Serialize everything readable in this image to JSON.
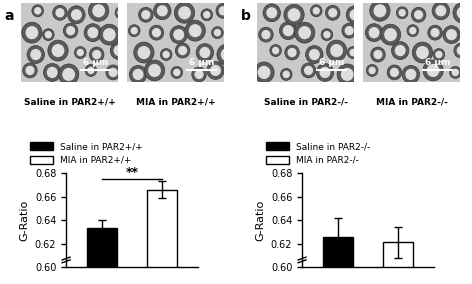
{
  "chart_data": [
    {
      "type": "bar",
      "title": "a",
      "categories": [
        null,
        null
      ],
      "series": [
        {
          "name": "Saline in PAR2+/+",
          "color": "#000000",
          "values": [
            0.633,
            null
          ],
          "errors": [
            0.007,
            null
          ]
        },
        {
          "name": "MIA in PAR2+/+",
          "color": "#ffffff",
          "values": [
            null,
            0.666
          ],
          "errors": [
            null,
            0.007
          ]
        }
      ],
      "y_label": "G-Ratio",
      "ylim": [
        0.6,
        0.68
      ],
      "yticks": [
        {
          "value": 0.6,
          "label": "0.60"
        },
        {
          "value": 0.62,
          "label": "0.62"
        },
        {
          "value": 0.64,
          "label": "0.64"
        },
        {
          "value": 0.66,
          "label": "0.66"
        },
        {
          "value": 0.68,
          "label": "0.68"
        }
      ],
      "legend": "lower left",
      "tick_labels": "y",
      "significance": {
        "label": "**",
        "between": [
          0,
          1
        ]
      }
    },
    {
      "type": "bar",
      "title": "b",
      "categories": [
        null,
        null
      ],
      "series": [
        {
          "name": "Saline in PAR2-/-",
          "color": "#000000",
          "values": [
            0.626,
            null
          ],
          "errors": [
            0.016,
            null
          ]
        },
        {
          "name": "MIA in PAR2-/-",
          "color": "#ffffff",
          "values": [
            null,
            0.621
          ],
          "errors": [
            null,
            0.013
          ]
        }
      ],
      "y_label": "G-Ratio",
      "ylim": [
        0.6,
        0.68
      ],
      "yticks": [
        {
          "value": 0.6,
          "label": "0.60"
        },
        {
          "value": 0.62,
          "label": "0.62"
        },
        {
          "value": 0.64,
          "label": "0.64"
        },
        {
          "value": 0.66,
          "label": "0.66"
        },
        {
          "value": 0.68,
          "label": "0.68"
        }
      ],
      "legend": "lower left",
      "tick_labels": "y"
    }
  ],
  "micrographs": [
    {
      "panel": "a",
      "caption": "Saline in PAR2+/+",
      "scale_bar": "6 µm"
    },
    {
      "panel": "a",
      "caption": "MIA in PAR2+/+",
      "scale_bar": "6 µm"
    },
    {
      "panel": "b",
      "caption": "Saline in PAR2-/-",
      "scale_bar": "6 µm"
    },
    {
      "panel": "b",
      "caption": "MIA in PAR2-/-",
      "scale_bar": "6 µm"
    }
  ]
}
